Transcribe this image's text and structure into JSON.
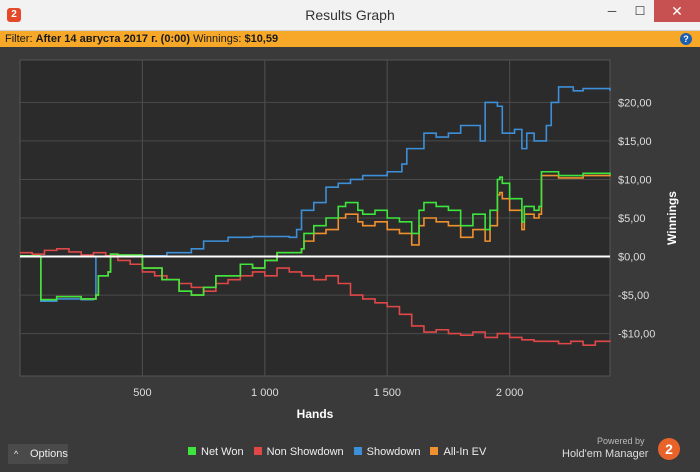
{
  "window": {
    "title": "Results Graph",
    "app_icon": "2",
    "min_glyph": "─",
    "max_glyph": "☐",
    "close_glyph": "✕"
  },
  "filter": {
    "prefix": "Filter:",
    "value": "After 14 августа 2017 г. (0:00)",
    "winnings_label": "Winnings:",
    "winnings_value": "$10,59",
    "help_glyph": "?"
  },
  "footer": {
    "options_label": "Options",
    "options_caret": "^",
    "powered_by": "Powered by",
    "brand": "Hold'em Manager",
    "brand_badge": "2"
  },
  "colors": {
    "net_won": "#3ee53e",
    "non_showdown": "#e04848",
    "showdown": "#3d8fd8",
    "all_in_ev": "#f0902e",
    "zero_line": "#ffffff"
  },
  "chart_data": {
    "type": "line",
    "xlabel": "Hands",
    "ylabel": "Winnings",
    "xlim": [
      0,
      2410
    ],
    "ylim": [
      -15.5,
      25.5
    ],
    "x_ticks": [
      500,
      1000,
      1500,
      2000
    ],
    "x_tick_labels": [
      "500",
      "1 000",
      "1 500",
      "2 000"
    ],
    "y_ticks": [
      20,
      15,
      10,
      5,
      0,
      -5,
      -10
    ],
    "y_tick_labels": [
      "$20,00",
      "$15,00",
      "$10,00",
      "$5,00",
      "$0,00",
      "-$5,00",
      "-$10,00"
    ],
    "grid": true,
    "legend_position": "bottom",
    "series": [
      {
        "name": "Net Won",
        "color_key": "net_won",
        "x": [
          0,
          80,
          85,
          150,
          250,
          310,
          320,
          360,
          370,
          400,
          500,
          580,
          650,
          700,
          750,
          800,
          900,
          950,
          1000,
          1050,
          1100,
          1150,
          1160,
          1200,
          1250,
          1300,
          1330,
          1380,
          1400,
          1450,
          1500,
          1550,
          1600,
          1630,
          1650,
          1700,
          1750,
          1800,
          1850,
          1900,
          1920,
          1950,
          1960,
          1970,
          2000,
          2050,
          2060,
          2100,
          2120,
          2130,
          2200,
          2300,
          2410
        ],
        "y": [
          0.1,
          0,
          -5.6,
          -5.2,
          -5.5,
          -5.0,
          -2.5,
          -2.0,
          0.3,
          0.2,
          -1.5,
          -3.0,
          -4.5,
          -5.0,
          -4.0,
          -2.5,
          -1.0,
          -1.5,
          -0.5,
          0.5,
          0.5,
          1.0,
          3.0,
          4.0,
          5.0,
          6.5,
          7.0,
          6.0,
          5.5,
          6.0,
          5.0,
          4.5,
          3.0,
          6.0,
          7.0,
          6.5,
          6.0,
          4.0,
          5.5,
          3.5,
          6.0,
          10.0,
          10.3,
          9.5,
          7.5,
          4.5,
          6.5,
          6.0,
          6.5,
          11.0,
          10.5,
          10.8,
          10.59
        ]
      },
      {
        "name": "Non Showdown",
        "color_key": "non_showdown",
        "x": [
          0,
          50,
          100,
          150,
          200,
          250,
          300,
          350,
          400,
          450,
          500,
          550,
          600,
          650,
          700,
          750,
          800,
          850,
          900,
          950,
          1000,
          1050,
          1100,
          1150,
          1200,
          1250,
          1300,
          1350,
          1400,
          1450,
          1500,
          1550,
          1600,
          1650,
          1700,
          1750,
          1800,
          1850,
          1900,
          1950,
          2000,
          2050,
          2100,
          2150,
          2200,
          2250,
          2300,
          2350,
          2410
        ],
        "y": [
          0.5,
          0.3,
          0.8,
          1.0,
          0.6,
          0.2,
          0.5,
          0.1,
          -0.5,
          -1.0,
          -2.0,
          -2.5,
          -3.0,
          -3.5,
          -4.0,
          -4.5,
          -3.5,
          -3.0,
          -2.5,
          -2.0,
          -2.5,
          -1.5,
          -2.0,
          -2.5,
          -3.0,
          -2.5,
          -3.5,
          -5.0,
          -5.5,
          -6.0,
          -6.5,
          -7.5,
          -9.0,
          -9.8,
          -9.5,
          -10.0,
          -10.2,
          -9.8,
          -10.5,
          -10.0,
          -10.5,
          -10.8,
          -11.0,
          -11.0,
          -11.3,
          -11.0,
          -11.5,
          -11.0,
          -10.9
        ]
      },
      {
        "name": "Showdown",
        "color_key": "showdown",
        "x": [
          0,
          80,
          85,
          150,
          250,
          300,
          310,
          400,
          450,
          600,
          700,
          750,
          850,
          950,
          1100,
          1130,
          1150,
          1200,
          1250,
          1300,
          1350,
          1400,
          1500,
          1560,
          1580,
          1650,
          1700,
          1750,
          1800,
          1880,
          1900,
          1950,
          1970,
          2020,
          2050,
          2070,
          2100,
          2150,
          2170,
          2200,
          2260,
          2300,
          2410
        ],
        "y": [
          0.1,
          0,
          -5.8,
          -5.5,
          -5.6,
          -5.5,
          0.0,
          0.0,
          0.1,
          0.5,
          1.0,
          2.0,
          2.5,
          2.6,
          2.5,
          3.5,
          6.0,
          7.0,
          9.0,
          9.5,
          10.0,
          10.5,
          11.0,
          12.0,
          14.0,
          16.0,
          15.5,
          16.0,
          17.0,
          15.0,
          20.0,
          19.5,
          16.0,
          16.5,
          14.0,
          16.0,
          15.0,
          17.0,
          20.0,
          22.0,
          21.5,
          21.8,
          21.5
        ]
      },
      {
        "name": "All-In EV",
        "color_key": "all_in_ev",
        "x": [
          0,
          80,
          85,
          150,
          250,
          310,
          320,
          360,
          370,
          400,
          500,
          580,
          650,
          700,
          750,
          800,
          900,
          950,
          1000,
          1050,
          1100,
          1150,
          1160,
          1200,
          1250,
          1300,
          1330,
          1380,
          1400,
          1450,
          1500,
          1550,
          1600,
          1630,
          1650,
          1700,
          1750,
          1800,
          1850,
          1900,
          1920,
          1950,
          1960,
          1970,
          2000,
          2050,
          2060,
          2100,
          2120,
          2130,
          2200,
          2300,
          2410
        ],
        "y": [
          0.1,
          0,
          -5.6,
          -5.2,
          -5.5,
          -5.0,
          -2.5,
          -2.0,
          0.3,
          0.2,
          -1.5,
          -3.0,
          -4.5,
          -5.0,
          -4.0,
          -2.5,
          -1.0,
          -1.5,
          -0.5,
          0.5,
          0.5,
          1.0,
          2.0,
          3.0,
          3.5,
          5.0,
          5.5,
          4.5,
          4.0,
          4.5,
          3.5,
          3.0,
          1.5,
          4.0,
          5.0,
          4.5,
          4.0,
          2.5,
          3.5,
          2.0,
          4.0,
          8.0,
          8.3,
          7.5,
          6.0,
          3.5,
          5.5,
          5.0,
          5.5,
          10.5,
          10.2,
          10.5,
          10.4
        ]
      }
    ]
  }
}
